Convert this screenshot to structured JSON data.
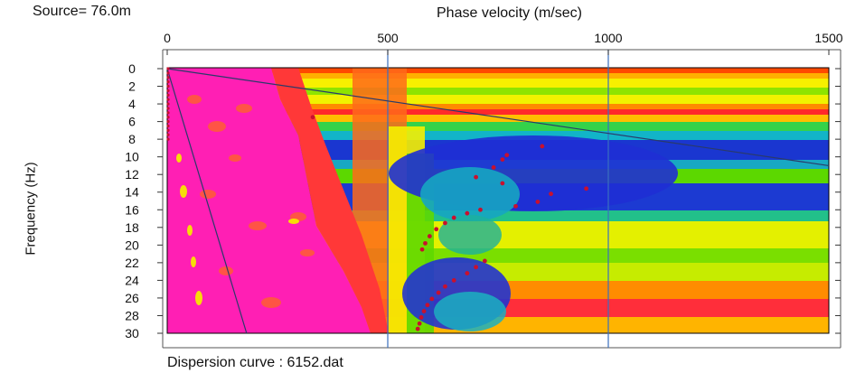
{
  "header": {
    "source_label": "Source= 76.0m",
    "footer_label": "Dispersion curve : 6152.dat"
  },
  "chart_data": {
    "type": "heatmap",
    "title": "",
    "xlabel": "Phase velocity (m/sec)",
    "ylabel": "Frequency (Hz)",
    "xlim": [
      0,
      1500
    ],
    "ylim": [
      0,
      30
    ],
    "y_inverted": true,
    "x_ticks": [
      0,
      500,
      1000,
      1500
    ],
    "y_ticks": [
      0,
      2,
      4,
      6,
      8,
      10,
      12,
      14,
      16,
      18,
      20,
      22,
      24,
      26,
      28,
      30
    ],
    "vertical_gridlines": [
      500,
      1000
    ],
    "colormap": [
      "#ff1fb4",
      "#ff3a3a",
      "#ffa600",
      "#f7f000",
      "#6ee000",
      "#00c8c8",
      "#1a2bd4"
    ],
    "dispersion_points": [
      {
        "x": 330,
        "y": 5.5
      },
      {
        "x": 850,
        "y": 8.8
      },
      {
        "x": 770,
        "y": 9.8
      },
      {
        "x": 760,
        "y": 10.3
      },
      {
        "x": 740,
        "y": 11.2
      },
      {
        "x": 700,
        "y": 12.3
      },
      {
        "x": 760,
        "y": 13.0
      },
      {
        "x": 950,
        "y": 13.6
      },
      {
        "x": 870,
        "y": 14.2
      },
      {
        "x": 840,
        "y": 15.1
      },
      {
        "x": 790,
        "y": 15.6
      },
      {
        "x": 710,
        "y": 16.0
      },
      {
        "x": 680,
        "y": 16.4
      },
      {
        "x": 650,
        "y": 16.9
      },
      {
        "x": 630,
        "y": 17.5
      },
      {
        "x": 610,
        "y": 18.2
      },
      {
        "x": 595,
        "y": 19.0
      },
      {
        "x": 585,
        "y": 19.8
      },
      {
        "x": 578,
        "y": 20.5
      },
      {
        "x": 720,
        "y": 21.8
      },
      {
        "x": 700,
        "y": 22.5
      },
      {
        "x": 680,
        "y": 23.2
      },
      {
        "x": 650,
        "y": 24.0
      },
      {
        "x": 630,
        "y": 24.7
      },
      {
        "x": 615,
        "y": 25.4
      },
      {
        "x": 600,
        "y": 26.1
      },
      {
        "x": 590,
        "y": 26.8
      },
      {
        "x": 582,
        "y": 27.5
      },
      {
        "x": 576,
        "y": 28.2
      },
      {
        "x": 572,
        "y": 28.9
      },
      {
        "x": 568,
        "y": 29.5
      }
    ],
    "reference_lines": [
      {
        "from": [
          0,
          0
        ],
        "to": [
          1500,
          11.0
        ]
      },
      {
        "from": [
          0,
          0
        ],
        "to": [
          180,
          30
        ]
      }
    ]
  }
}
